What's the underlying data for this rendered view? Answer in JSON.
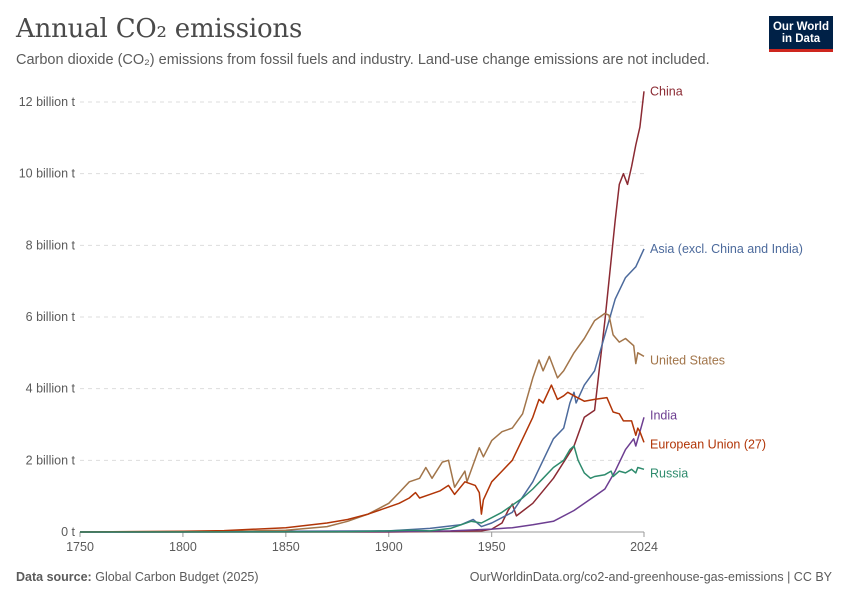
{
  "header": {
    "title": "Annual CO₂ emissions",
    "subtitle": "Carbon dioxide (CO₂) emissions from fossil fuels and industry. Land-use change emissions are not included."
  },
  "logo": {
    "line1": "Our World",
    "line2": "in Data"
  },
  "footer": {
    "source_label": "Data source:",
    "source_text": "Global Carbon Budget (2025)",
    "url_license": "OurWorldinData.org/co2-and-greenhouse-gas-emissions | CC BY"
  },
  "chart_data": {
    "type": "line",
    "title": "Annual CO₂ emissions",
    "xlim": [
      1750,
      2024
    ],
    "ylim": [
      0,
      12000000000
    ],
    "x_ticks": [
      1750,
      1800,
      1850,
      1900,
      1950,
      2024
    ],
    "x_tick_labels": [
      "1750",
      "1800",
      "1850",
      "1900",
      "1950",
      "2024"
    ],
    "y_ticks": [
      0,
      2000000000,
      4000000000,
      6000000000,
      8000000000,
      10000000000,
      12000000000
    ],
    "y_tick_labels": [
      "0 t",
      "2 billion t",
      "4 billion t",
      "6 billion t",
      "8 billion t",
      "10 billion t",
      "12 billion t"
    ],
    "grid": "horizontal dashed",
    "legend": "inline labels at line ends (right)",
    "series": [
      {
        "name": "China",
        "color": "#8b2a33",
        "points": [
          [
            1750,
            0
          ],
          [
            1900,
            0
          ],
          [
            1930,
            20000000
          ],
          [
            1945,
            30000000
          ],
          [
            1950,
            80000000
          ],
          [
            1955,
            250000000
          ],
          [
            1958,
            600000000
          ],
          [
            1960,
            780000000
          ],
          [
            1962,
            450000000
          ],
          [
            1970,
            800000000
          ],
          [
            1980,
            1500000000
          ],
          [
            1990,
            2400000000
          ],
          [
            1995,
            3200000000
          ],
          [
            2000,
            3400000000
          ],
          [
            2005,
            5900000000
          ],
          [
            2010,
            8700000000
          ],
          [
            2012,
            9700000000
          ],
          [
            2014,
            10000000000
          ],
          [
            2016,
            9700000000
          ],
          [
            2018,
            10200000000
          ],
          [
            2020,
            10800000000
          ],
          [
            2022,
            11300000000
          ],
          [
            2024,
            12300000000
          ]
        ]
      },
      {
        "name": "Asia (excl. China and India)",
        "color": "#4c6a9c",
        "points": [
          [
            1750,
            0
          ],
          [
            1900,
            30000000
          ],
          [
            1920,
            100000000
          ],
          [
            1935,
            200000000
          ],
          [
            1941,
            350000000
          ],
          [
            1945,
            150000000
          ],
          [
            1950,
            250000000
          ],
          [
            1960,
            550000000
          ],
          [
            1970,
            1400000000
          ],
          [
            1975,
            2000000000
          ],
          [
            1980,
            2600000000
          ],
          [
            1985,
            2900000000
          ],
          [
            1988,
            3600000000
          ],
          [
            1990,
            3900000000
          ],
          [
            1991,
            3600000000
          ],
          [
            1995,
            4100000000
          ],
          [
            2000,
            4500000000
          ],
          [
            2005,
            5500000000
          ],
          [
            2010,
            6500000000
          ],
          [
            2015,
            7100000000
          ],
          [
            2020,
            7400000000
          ],
          [
            2024,
            7900000000
          ]
        ]
      },
      {
        "name": "United States",
        "color": "#a2754a",
        "points": [
          [
            1750,
            0
          ],
          [
            1800,
            2000000
          ],
          [
            1820,
            10000000
          ],
          [
            1850,
            50000000
          ],
          [
            1870,
            150000000
          ],
          [
            1880,
            300000000
          ],
          [
            1890,
            500000000
          ],
          [
            1900,
            800000000
          ],
          [
            1905,
            1100000000
          ],
          [
            1910,
            1400000000
          ],
          [
            1915,
            1500000000
          ],
          [
            1918,
            1800000000
          ],
          [
            1921,
            1500000000
          ],
          [
            1926,
            1950000000
          ],
          [
            1929,
            2000000000
          ],
          [
            1932,
            1250000000
          ],
          [
            1937,
            1700000000
          ],
          [
            1938,
            1400000000
          ],
          [
            1944,
            2350000000
          ],
          [
            1946,
            2100000000
          ],
          [
            1950,
            2550000000
          ],
          [
            1955,
            2800000000
          ],
          [
            1960,
            2900000000
          ],
          [
            1965,
            3300000000
          ],
          [
            1970,
            4300000000
          ],
          [
            1973,
            4800000000
          ],
          [
            1975,
            4500000000
          ],
          [
            1978,
            4900000000
          ],
          [
            1982,
            4300000000
          ],
          [
            1985,
            4500000000
          ],
          [
            1990,
            5000000000
          ],
          [
            1995,
            5400000000
          ],
          [
            2000,
            5900000000
          ],
          [
            2005,
            6100000000
          ],
          [
            2007,
            6050000000
          ],
          [
            2009,
            5500000000
          ],
          [
            2012,
            5300000000
          ],
          [
            2015,
            5400000000
          ],
          [
            2019,
            5200000000
          ],
          [
            2020,
            4700000000
          ],
          [
            2021,
            5000000000
          ],
          [
            2024,
            4900000000
          ]
        ]
      },
      {
        "name": "India",
        "color": "#6d3e91",
        "points": [
          [
            1750,
            0
          ],
          [
            1900,
            10000000
          ],
          [
            1930,
            30000000
          ],
          [
            1950,
            80000000
          ],
          [
            1960,
            120000000
          ],
          [
            1970,
            200000000
          ],
          [
            1980,
            300000000
          ],
          [
            1990,
            600000000
          ],
          [
            2000,
            1000000000
          ],
          [
            2005,
            1200000000
          ],
          [
            2010,
            1700000000
          ],
          [
            2015,
            2300000000
          ],
          [
            2019,
            2600000000
          ],
          [
            2020,
            2400000000
          ],
          [
            2022,
            2800000000
          ],
          [
            2024,
            3200000000
          ]
        ]
      },
      {
        "name": "European Union (27)",
        "color": "#b13507",
        "points": [
          [
            1750,
            0
          ],
          [
            1800,
            20000000
          ],
          [
            1820,
            40000000
          ],
          [
            1850,
            120000000
          ],
          [
            1870,
            250000000
          ],
          [
            1880,
            350000000
          ],
          [
            1890,
            500000000
          ],
          [
            1900,
            700000000
          ],
          [
            1905,
            800000000
          ],
          [
            1910,
            950000000
          ],
          [
            1913,
            1100000000
          ],
          [
            1915,
            950000000
          ],
          [
            1920,
            1050000000
          ],
          [
            1925,
            1150000000
          ],
          [
            1929,
            1300000000
          ],
          [
            1932,
            1050000000
          ],
          [
            1937,
            1400000000
          ],
          [
            1942,
            1300000000
          ],
          [
            1944,
            1100000000
          ],
          [
            1945,
            500000000
          ],
          [
            1946,
            900000000
          ],
          [
            1950,
            1400000000
          ],
          [
            1955,
            1700000000
          ],
          [
            1960,
            2000000000
          ],
          [
            1965,
            2600000000
          ],
          [
            1970,
            3200000000
          ],
          [
            1973,
            3700000000
          ],
          [
            1975,
            3600000000
          ],
          [
            1979,
            4100000000
          ],
          [
            1982,
            3700000000
          ],
          [
            1985,
            3800000000
          ],
          [
            1987,
            3900000000
          ],
          [
            1990,
            3800000000
          ],
          [
            1995,
            3650000000
          ],
          [
            2000,
            3700000000
          ],
          [
            2006,
            3750000000
          ],
          [
            2009,
            3350000000
          ],
          [
            2012,
            3300000000
          ],
          [
            2014,
            3100000000
          ],
          [
            2018,
            3100000000
          ],
          [
            2020,
            2700000000
          ],
          [
            2021,
            2900000000
          ],
          [
            2022,
            2800000000
          ],
          [
            2024,
            2500000000
          ]
        ]
      },
      {
        "name": "Russia",
        "color": "#2e8b6d",
        "points": [
          [
            1750,
            0
          ],
          [
            1880,
            5000000
          ],
          [
            1900,
            30000000
          ],
          [
            1910,
            50000000
          ],
          [
            1920,
            30000000
          ],
          [
            1930,
            100000000
          ],
          [
            1940,
            300000000
          ],
          [
            1945,
            250000000
          ],
          [
            1950,
            400000000
          ],
          [
            1955,
            550000000
          ],
          [
            1960,
            750000000
          ],
          [
            1965,
            950000000
          ],
          [
            1970,
            1200000000
          ],
          [
            1975,
            1500000000
          ],
          [
            1980,
            1800000000
          ],
          [
            1985,
            2000000000
          ],
          [
            1988,
            2300000000
          ],
          [
            1990,
            2400000000
          ],
          [
            1992,
            2000000000
          ],
          [
            1995,
            1650000000
          ],
          [
            1998,
            1500000000
          ],
          [
            2000,
            1550000000
          ],
          [
            2005,
            1600000000
          ],
          [
            2008,
            1700000000
          ],
          [
            2009,
            1550000000
          ],
          [
            2012,
            1700000000
          ],
          [
            2015,
            1650000000
          ],
          [
            2018,
            1750000000
          ],
          [
            2020,
            1650000000
          ],
          [
            2021,
            1800000000
          ],
          [
            2024,
            1750000000
          ]
        ]
      }
    ]
  }
}
